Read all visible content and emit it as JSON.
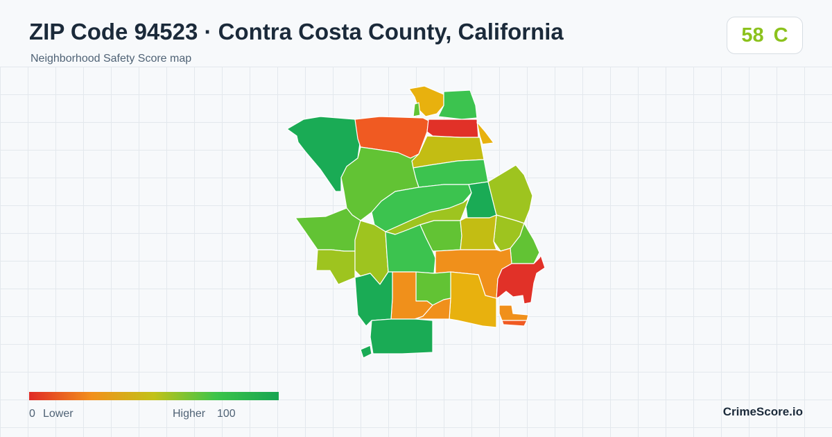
{
  "header": {
    "title": "ZIP Code 94523 · Contra Costa County, California",
    "subtitle": "Neighborhood Safety Score map"
  },
  "score": {
    "value": "58",
    "grade": "C",
    "color": "#8cc21d"
  },
  "legend": {
    "min_label": "0",
    "low_label": "Lower",
    "high_label": "Higher",
    "max_label": "100",
    "gradient_colors": [
      "#e02b27",
      "#f2901b",
      "#c2c218",
      "#3cc44a",
      "#17a552"
    ]
  },
  "brand": "CrimeScore.io",
  "palette": {
    "very_low": "#e13128",
    "low": "#f05a22",
    "medium_low": "#f0901b",
    "medium": "#e8b10e",
    "medium_high": "#c3bd13",
    "fair": "#9ec41f",
    "good": "#62c334",
    "high": "#3cc34f",
    "very_high": "#1aab55"
  }
}
